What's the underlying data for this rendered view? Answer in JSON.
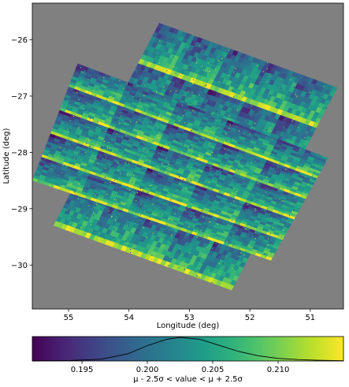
{
  "chart_data": [
    {
      "type": "heatmap",
      "title": "",
      "xlabel": "Longitude (deg)",
      "ylabel": "Latitude (deg)",
      "xlim": [
        55.6,
        50.45
      ],
      "ylim": [
        -30.78,
        -25.35
      ],
      "x_ticks": [
        55,
        54,
        53,
        52,
        51
      ],
      "y_ticks": [
        -26,
        -27,
        -28,
        -29,
        -30
      ],
      "background_color": "#808080",
      "colormap": "viridis",
      "grid": false,
      "regions": [
        {
          "name": "",
          "corners": [
            [
              53.5,
              -25.7
            ],
            [
              50.55,
              -26.85
            ],
            [
              52.3,
              -30.45
            ],
            [
              55.25,
              -29.3
            ]
          ],
          "tile_grid": [
            5,
            5
          ]
        },
        {
          "name": "",
          "corners": [
            [
              54.85,
              -26.42
            ],
            [
              50.7,
              -28.1
            ],
            [
              51.65,
              -29.92
            ],
            [
              55.6,
              -28.5
            ]
          ],
          "tile_grid": [
            5,
            5
          ]
        }
      ],
      "value_pattern": "low values (~0.198-0.200) in the upper-left of each detector tile, rising to ~0.210-0.215 along the lower tile edges"
    },
    {
      "type": "area",
      "title": "",
      "xlabel": "μ - 2.5σ < value < μ + 2.5σ",
      "ylabel": "",
      "colormap": "viridis",
      "xlim": [
        0.1912,
        0.215
      ],
      "x_ticks": [
        "0.195",
        "0.200",
        "0.205",
        "0.210"
      ],
      "histogram": {
        "x": [
          0.1912,
          0.194,
          0.1965,
          0.1985,
          0.2,
          0.2015,
          0.2025,
          0.204,
          0.2055,
          0.207,
          0.2085,
          0.21,
          0.2115,
          0.213,
          0.215
        ],
        "y": [
          0.0,
          0.02,
          0.08,
          0.3,
          0.65,
          0.92,
          1.0,
          0.92,
          0.66,
          0.4,
          0.22,
          0.11,
          0.06,
          0.03,
          0.01
        ]
      }
    }
  ]
}
